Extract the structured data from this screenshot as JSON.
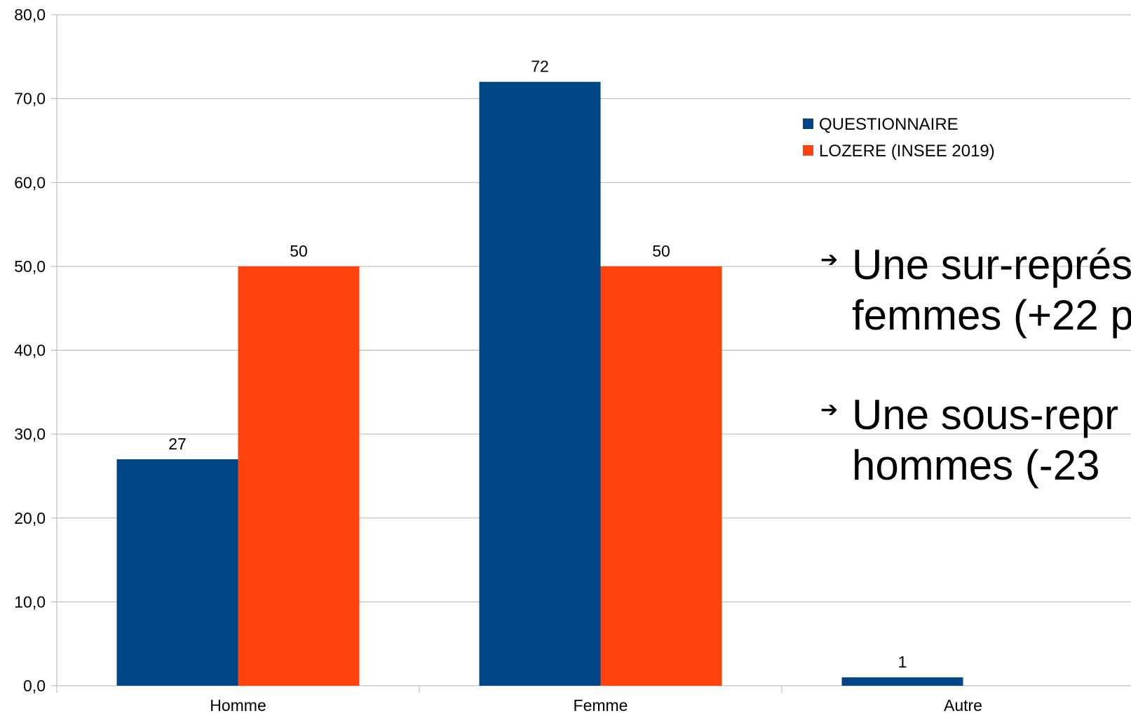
{
  "chart_data": {
    "type": "bar",
    "categories": [
      "Homme",
      "Femme",
      "Autre"
    ],
    "series": [
      {
        "name": "QUESTIONNAIRE",
        "values": [
          27,
          72,
          1
        ],
        "labels": [
          "27",
          "72",
          "1"
        ],
        "color": "#004586"
      },
      {
        "name": "LOZERE (INSEE 2019)",
        "values": [
          50,
          50,
          null
        ],
        "labels": [
          "50",
          "50",
          ""
        ],
        "color": "#ff420e"
      }
    ],
    "ylim": [
      0,
      80
    ],
    "yticks": [
      0,
      10,
      20,
      30,
      40,
      50,
      60,
      70,
      80
    ],
    "ytick_labels": [
      "0,0",
      "10,0",
      "20,0",
      "30,0",
      "40,0",
      "50,0",
      "60,0",
      "70,0",
      "80,0"
    ],
    "grid": true,
    "legend_position": "right",
    "title": "",
    "xlabel": "",
    "ylabel": ""
  },
  "annotations": {
    "arrow_glyph": "➔",
    "items": [
      {
        "line1": "Une sur-représ",
        "line2": "femmes (+22 p"
      },
      {
        "line1": "Une sous-repr",
        "line2": "hommes (-23"
      }
    ]
  }
}
